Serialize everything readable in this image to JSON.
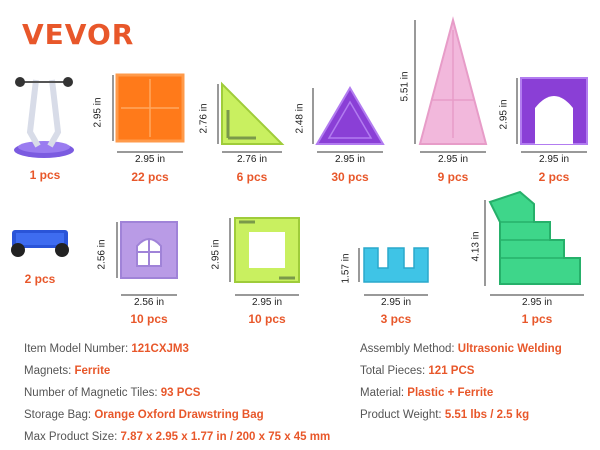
{
  "brand": "VEVOR",
  "pieces": [
    {
      "count": "1 pcs"
    },
    {
      "count": "22 pcs",
      "w": "2.95 in",
      "h": "2.95 in"
    },
    {
      "count": "6 pcs",
      "w": "2.76 in",
      "h": "2.76 in"
    },
    {
      "count": "30 pcs",
      "w": "2.95 in",
      "h": "2.48 in"
    },
    {
      "count": "9 pcs",
      "w": "2.95 in",
      "h": "5.51 in"
    },
    {
      "count": "2 pcs",
      "w": "2.95 in",
      "h": "2.95 in"
    },
    {
      "count": "2 pcs"
    },
    {
      "count": "10 pcs",
      "w": "2.56 in",
      "h": "2.56 in"
    },
    {
      "count": "10 pcs",
      "w": "2.95 in",
      "h": "2.95 in"
    },
    {
      "count": "3 pcs",
      "w": "2.95 in",
      "h": "1.57 in"
    },
    {
      "count": "1 pcs",
      "w": "2.95 in",
      "h": "4.13 in"
    }
  ],
  "specs": {
    "model": {
      "label": "Item Model Number: ",
      "value": "121CXJM3"
    },
    "magnets": {
      "label": "Magnets: ",
      "value": "Ferrite"
    },
    "tiles": {
      "label": "Number of Magnetic Tiles: ",
      "value": "93 PCS"
    },
    "bag": {
      "label": "Storage Bag: ",
      "value": "Orange Oxford Drawstring Bag"
    },
    "size": {
      "label": "Max Product Size: ",
      "value": "7.87 x 2.95 x 1.77 in / 200 x 75 x 45 mm"
    },
    "assembly": {
      "label": "Assembly Method: ",
      "value": "Ultrasonic Welding"
    },
    "total": {
      "label": "Total Pieces: ",
      "value": "121 PCS"
    },
    "material": {
      "label": "Material: ",
      "value": "Plastic + Ferrite"
    },
    "weight": {
      "label": "Product Weight: ",
      "value": "5.51 lbs / 2.5 kg"
    }
  },
  "colors": {
    "accent": "#e8572a",
    "orange_tile": "#ff7a1a",
    "lime_tile": "#c9f060",
    "purple_tile": "#8a3fd6",
    "pink_tile": "#f2b8dc",
    "lavender_tile": "#b99be6",
    "cyan_tile": "#3fc4e6",
    "green_tile": "#3ed68a",
    "blue_car": "#2a54d8"
  }
}
